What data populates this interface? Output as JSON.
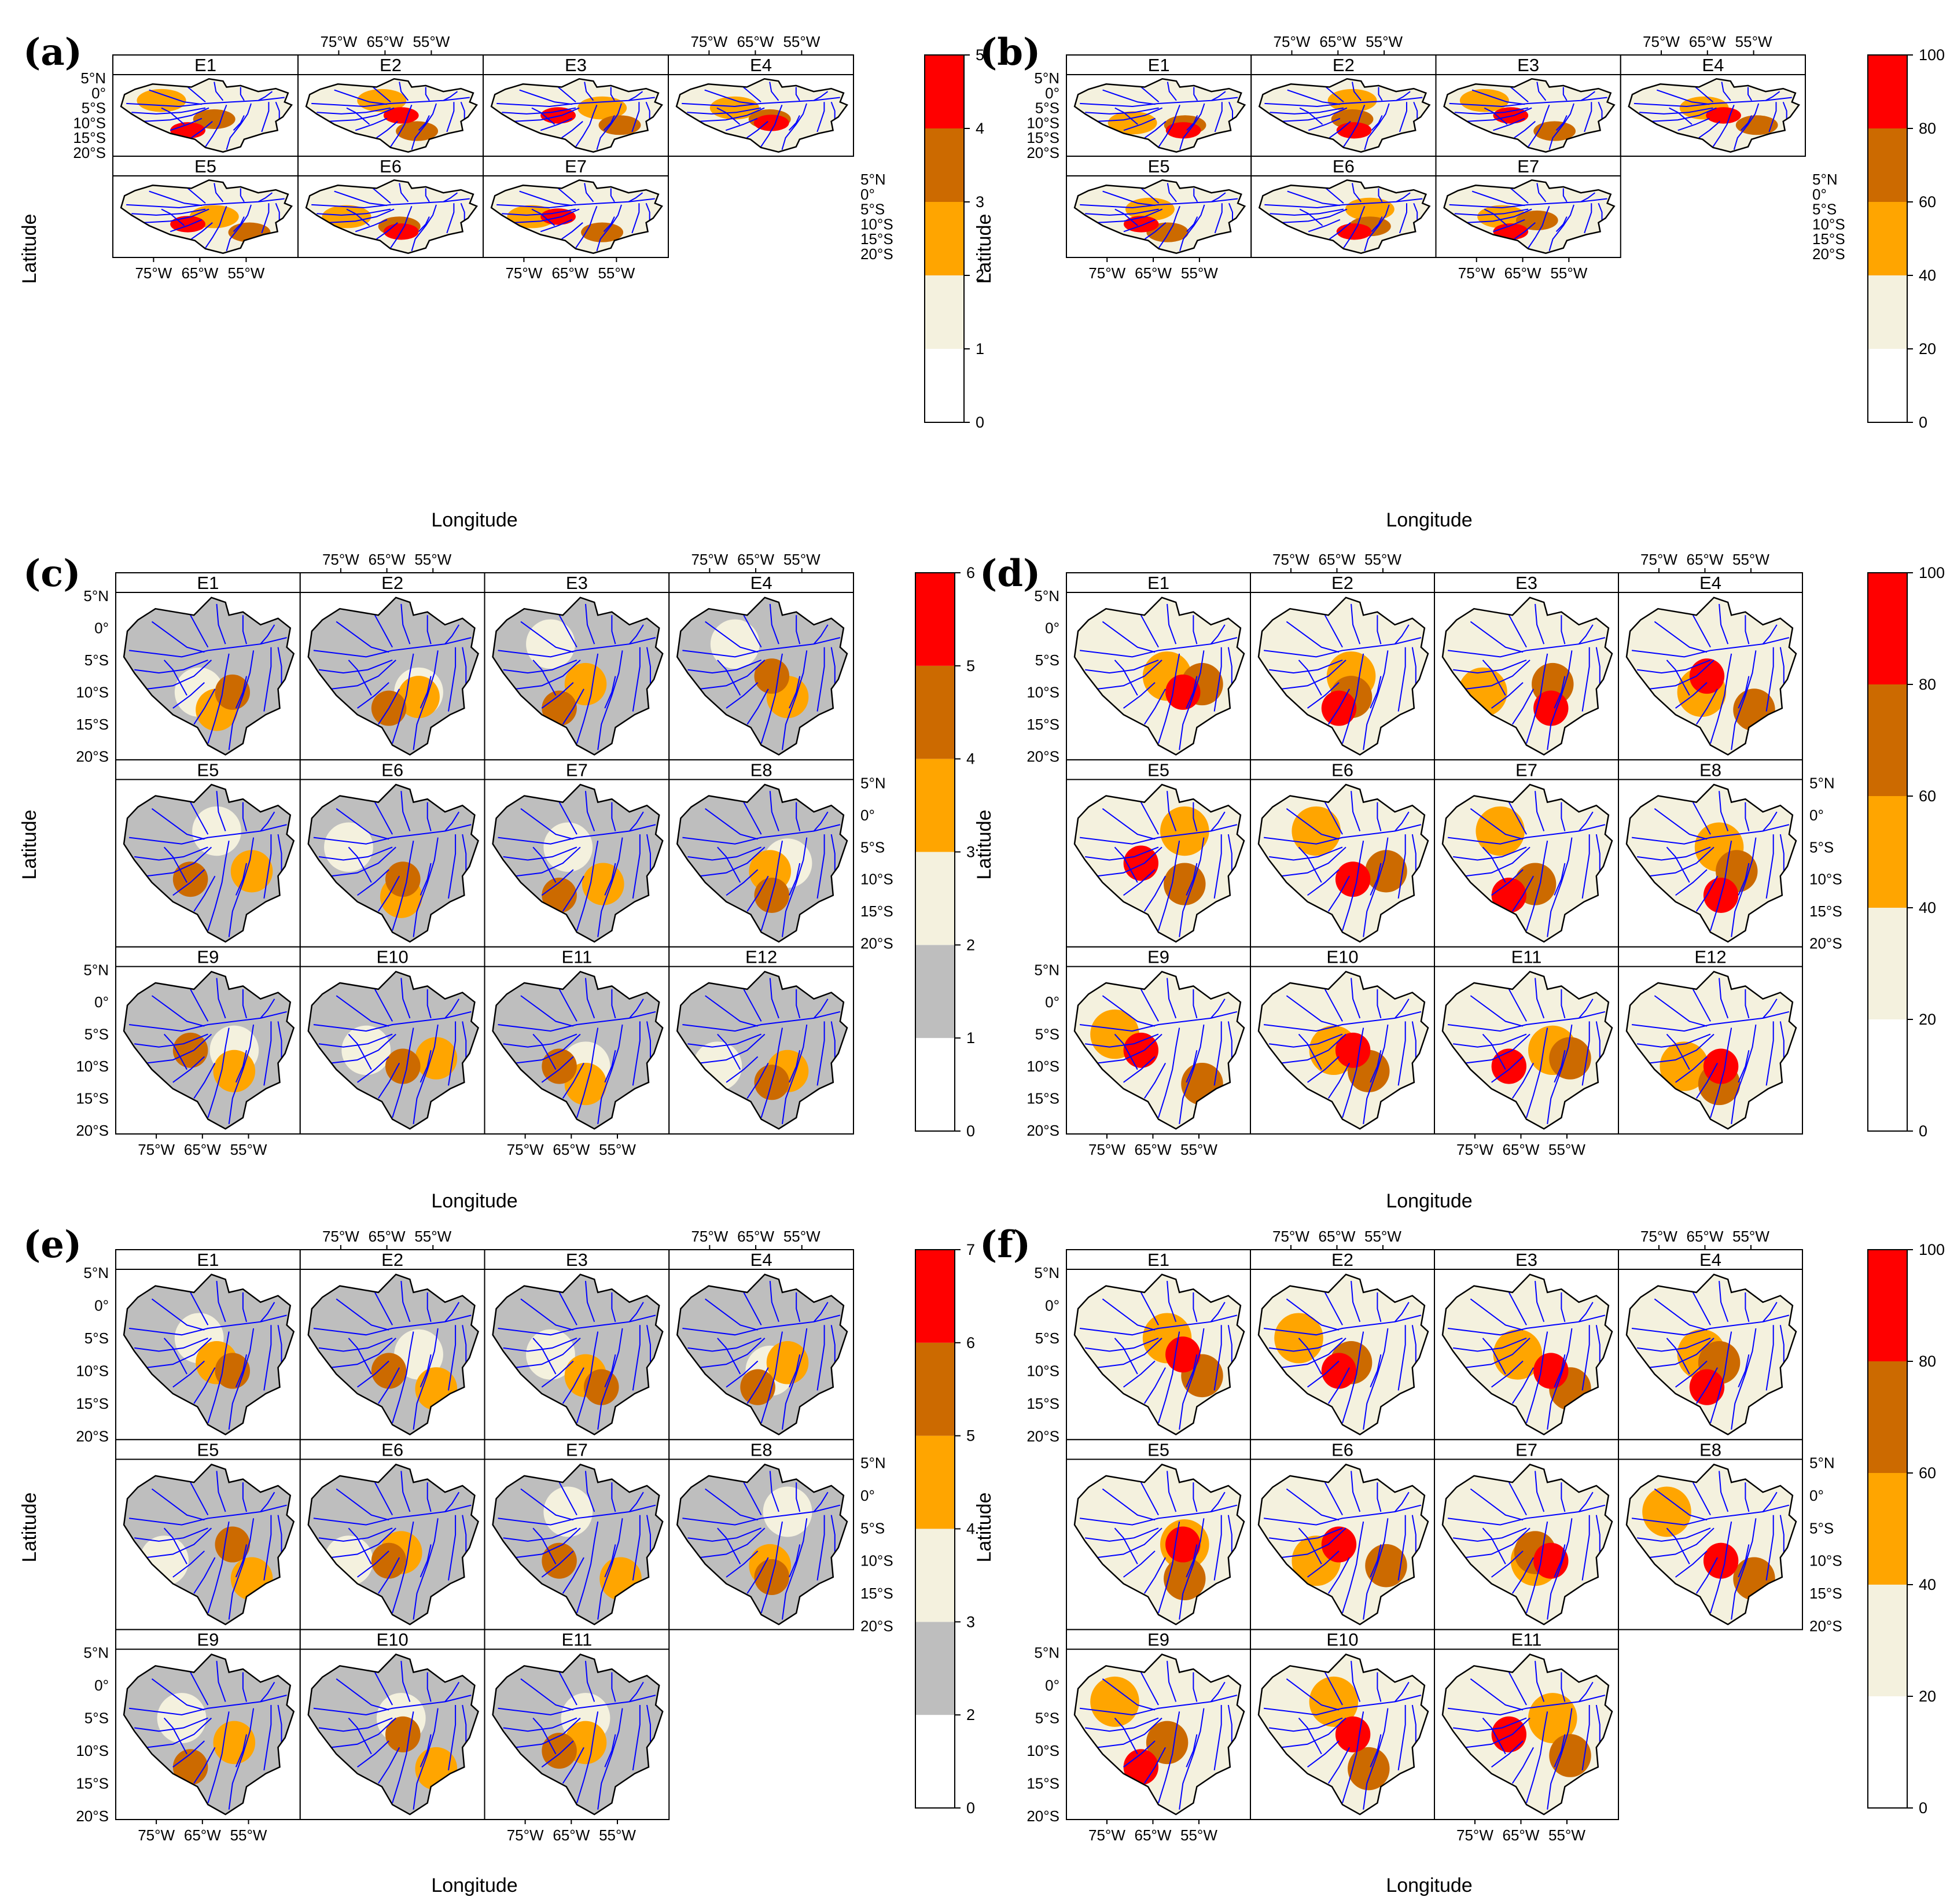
{
  "figure": {
    "panels": [
      {
        "label": "(a)",
        "facets": [
          "E1",
          "E2",
          "E3",
          "E4",
          "E5",
          "E6",
          "E7"
        ],
        "colorbar_ticks": [
          "0",
          "1",
          "2",
          "3",
          "4",
          "5"
        ],
        "colorbar_colors": [
          "#ffffff",
          "#f4f1de",
          "#ffa500",
          "#cc6a00",
          "#ff0000"
        ],
        "xlabel": "Longitude",
        "ylabel": "Latitude"
      },
      {
        "label": "(b)",
        "facets": [
          "E1",
          "E2",
          "E3",
          "E4",
          "E5",
          "E6",
          "E7"
        ],
        "colorbar_ticks": [
          "0",
          "20",
          "40",
          "60",
          "80",
          "100"
        ],
        "colorbar_colors": [
          "#ffffff",
          "#f4f1de",
          "#ffa500",
          "#cc6a00",
          "#ff0000"
        ],
        "xlabel": "Longitude",
        "ylabel": "Latitude"
      },
      {
        "label": "(c)",
        "facets": [
          "E1",
          "E2",
          "E3",
          "E4",
          "E5",
          "E6",
          "E7",
          "E8",
          "E9",
          "E10",
          "E11",
          "E12"
        ],
        "colorbar_ticks": [
          "0",
          "1",
          "2",
          "3",
          "4",
          "5",
          "6"
        ],
        "colorbar_colors": [
          "#ffffff",
          "#bebebe",
          "#f4f1de",
          "#ffa500",
          "#cc6a00",
          "#ff0000"
        ],
        "xlabel": "Longitude",
        "ylabel": "Latitude"
      },
      {
        "label": "(d)",
        "facets": [
          "E1",
          "E2",
          "E3",
          "E4",
          "E5",
          "E6",
          "E7",
          "E8",
          "E9",
          "E10",
          "E11",
          "E12"
        ],
        "colorbar_ticks": [
          "0",
          "20",
          "40",
          "60",
          "80",
          "100"
        ],
        "colorbar_colors": [
          "#ffffff",
          "#f4f1de",
          "#ffa500",
          "#cc6a00",
          "#ff0000"
        ],
        "xlabel": "Longitude",
        "ylabel": "Latitude"
      },
      {
        "label": "(e)",
        "facets": [
          "E1",
          "E2",
          "E3",
          "E4",
          "E5",
          "E6",
          "E7",
          "E8",
          "E9",
          "E10",
          "E11"
        ],
        "colorbar_ticks": [
          "0",
          "2",
          "3",
          "4",
          "5",
          "6",
          "7"
        ],
        "colorbar_colors": [
          "#ffffff",
          "#bebebe",
          "#f4f1de",
          "#ffa500",
          "#cc6a00",
          "#ff0000"
        ],
        "xlabel": "Longitude",
        "ylabel": "Latitude"
      },
      {
        "label": "(f)",
        "facets": [
          "E1",
          "E2",
          "E3",
          "E4",
          "E5",
          "E6",
          "E7",
          "E8",
          "E9",
          "E10",
          "E11"
        ],
        "colorbar_ticks": [
          "0",
          "20",
          "40",
          "60",
          "80",
          "100"
        ],
        "colorbar_colors": [
          "#ffffff",
          "#f4f1de",
          "#ffa500",
          "#cc6a00",
          "#ff0000"
        ],
        "xlabel": "Longitude",
        "ylabel": "Latitude"
      }
    ],
    "lon_ticks": [
      "75°W",
      "65°W",
      "55°W"
    ],
    "lat_ticks": [
      "5°N",
      "0°",
      "5°S",
      "10°S",
      "15°S",
      "20°S"
    ],
    "river_color": "#0000ff",
    "outline_color": "#000000"
  }
}
